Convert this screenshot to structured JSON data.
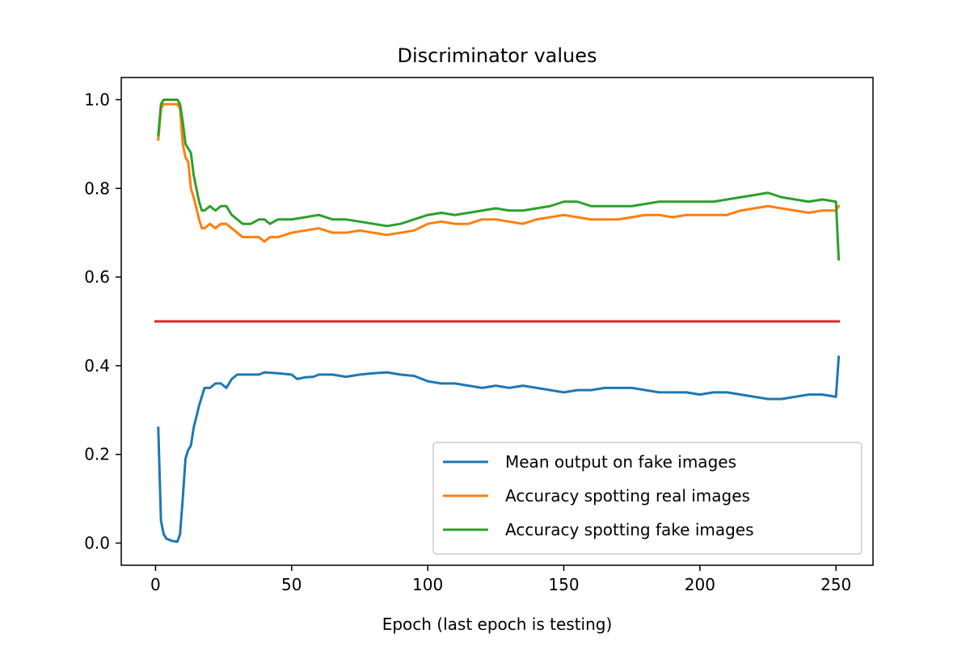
{
  "chart_data": {
    "type": "line",
    "title": "Discriminator values",
    "xlabel": "Epoch (last epoch is testing)",
    "ylabel": "",
    "xlim": [
      -12.6,
      263.6
    ],
    "ylim": [
      -0.05,
      1.05
    ],
    "xticks": [
      0,
      50,
      100,
      150,
      200,
      250
    ],
    "yticks": [
      0.0,
      0.2,
      0.4,
      0.6,
      0.8,
      1.0
    ],
    "ytick_labels": [
      "0.0",
      "0.2",
      "0.4",
      "0.6",
      "0.8",
      "1.0"
    ],
    "legend_position": "lower right",
    "grid": false,
    "series": [
      {
        "name": "Mean output on fake images",
        "color": "#1f77b4",
        "points": [
          [
            1,
            0.26
          ],
          [
            2,
            0.05
          ],
          [
            3,
            0.02
          ],
          [
            4,
            0.01
          ],
          [
            6,
            0.005
          ],
          [
            8,
            0.003
          ],
          [
            9,
            0.02
          ],
          [
            10,
            0.1
          ],
          [
            11,
            0.19
          ],
          [
            12,
            0.21
          ],
          [
            13,
            0.22
          ],
          [
            14,
            0.26
          ],
          [
            16,
            0.31
          ],
          [
            18,
            0.35
          ],
          [
            20,
            0.35
          ],
          [
            22,
            0.36
          ],
          [
            24,
            0.36
          ],
          [
            26,
            0.35
          ],
          [
            28,
            0.37
          ],
          [
            30,
            0.38
          ],
          [
            33,
            0.38
          ],
          [
            35,
            0.38
          ],
          [
            38,
            0.38
          ],
          [
            40,
            0.385
          ],
          [
            45,
            0.383
          ],
          [
            50,
            0.38
          ],
          [
            52,
            0.37
          ],
          [
            55,
            0.374
          ],
          [
            58,
            0.375
          ],
          [
            60,
            0.38
          ],
          [
            65,
            0.38
          ],
          [
            70,
            0.375
          ],
          [
            75,
            0.38
          ],
          [
            80,
            0.383
          ],
          [
            85,
            0.385
          ],
          [
            90,
            0.38
          ],
          [
            95,
            0.377
          ],
          [
            100,
            0.365
          ],
          [
            105,
            0.36
          ],
          [
            110,
            0.36
          ],
          [
            115,
            0.355
          ],
          [
            120,
            0.35
          ],
          [
            125,
            0.355
          ],
          [
            130,
            0.35
          ],
          [
            135,
            0.355
          ],
          [
            140,
            0.35
          ],
          [
            145,
            0.345
          ],
          [
            150,
            0.34
          ],
          [
            155,
            0.345
          ],
          [
            160,
            0.345
          ],
          [
            165,
            0.35
          ],
          [
            170,
            0.35
          ],
          [
            175,
            0.35
          ],
          [
            180,
            0.345
          ],
          [
            185,
            0.34
          ],
          [
            190,
            0.34
          ],
          [
            195,
            0.34
          ],
          [
            200,
            0.335
          ],
          [
            205,
            0.34
          ],
          [
            210,
            0.34
          ],
          [
            215,
            0.335
          ],
          [
            220,
            0.33
          ],
          [
            225,
            0.325
          ],
          [
            230,
            0.325
          ],
          [
            235,
            0.33
          ],
          [
            240,
            0.335
          ],
          [
            245,
            0.335
          ],
          [
            250,
            0.33
          ],
          [
            251,
            0.42
          ]
        ]
      },
      {
        "name": "Accuracy spotting real images",
        "color": "#ff7f0e",
        "points": [
          [
            1,
            0.91
          ],
          [
            2,
            0.98
          ],
          [
            3,
            0.99
          ],
          [
            5,
            0.99
          ],
          [
            8,
            0.99
          ],
          [
            9,
            0.98
          ],
          [
            10,
            0.9
          ],
          [
            11,
            0.87
          ],
          [
            12,
            0.86
          ],
          [
            13,
            0.8
          ],
          [
            14,
            0.78
          ],
          [
            16,
            0.73
          ],
          [
            17,
            0.71
          ],
          [
            18,
            0.71
          ],
          [
            20,
            0.72
          ],
          [
            22,
            0.71
          ],
          [
            24,
            0.72
          ],
          [
            26,
            0.72
          ],
          [
            28,
            0.71
          ],
          [
            30,
            0.7
          ],
          [
            32,
            0.69
          ],
          [
            35,
            0.69
          ],
          [
            38,
            0.69
          ],
          [
            40,
            0.68
          ],
          [
            42,
            0.69
          ],
          [
            45,
            0.69
          ],
          [
            50,
            0.7
          ],
          [
            55,
            0.705
          ],
          [
            60,
            0.71
          ],
          [
            65,
            0.7
          ],
          [
            70,
            0.7
          ],
          [
            75,
            0.705
          ],
          [
            80,
            0.7
          ],
          [
            85,
            0.695
          ],
          [
            90,
            0.7
          ],
          [
            95,
            0.705
          ],
          [
            100,
            0.72
          ],
          [
            105,
            0.725
          ],
          [
            110,
            0.72
          ],
          [
            115,
            0.72
          ],
          [
            120,
            0.73
          ],
          [
            125,
            0.73
          ],
          [
            130,
            0.725
          ],
          [
            135,
            0.72
          ],
          [
            140,
            0.73
          ],
          [
            145,
            0.735
          ],
          [
            150,
            0.74
          ],
          [
            155,
            0.735
          ],
          [
            160,
            0.73
          ],
          [
            165,
            0.73
          ],
          [
            170,
            0.73
          ],
          [
            175,
            0.735
          ],
          [
            180,
            0.74
          ],
          [
            185,
            0.74
          ],
          [
            190,
            0.735
          ],
          [
            195,
            0.74
          ],
          [
            200,
            0.74
          ],
          [
            205,
            0.74
          ],
          [
            210,
            0.74
          ],
          [
            215,
            0.75
          ],
          [
            220,
            0.755
          ],
          [
            225,
            0.76
          ],
          [
            230,
            0.755
          ],
          [
            235,
            0.75
          ],
          [
            240,
            0.745
          ],
          [
            245,
            0.75
          ],
          [
            250,
            0.75
          ],
          [
            251,
            0.76
          ]
        ]
      },
      {
        "name": "Accuracy spotting fake images",
        "color": "#2ca02c",
        "points": [
          [
            1,
            0.92
          ],
          [
            2,
            0.99
          ],
          [
            3,
            1.0
          ],
          [
            5,
            1.0
          ],
          [
            8,
            1.0
          ],
          [
            9,
            0.99
          ],
          [
            10,
            0.95
          ],
          [
            11,
            0.9
          ],
          [
            12,
            0.89
          ],
          [
            13,
            0.88
          ],
          [
            14,
            0.83
          ],
          [
            16,
            0.77
          ],
          [
            17,
            0.75
          ],
          [
            18,
            0.75
          ],
          [
            20,
            0.76
          ],
          [
            22,
            0.75
          ],
          [
            24,
            0.76
          ],
          [
            26,
            0.76
          ],
          [
            28,
            0.74
          ],
          [
            30,
            0.73
          ],
          [
            32,
            0.72
          ],
          [
            35,
            0.72
          ],
          [
            38,
            0.73
          ],
          [
            40,
            0.73
          ],
          [
            42,
            0.72
          ],
          [
            45,
            0.73
          ],
          [
            50,
            0.73
          ],
          [
            55,
            0.735
          ],
          [
            60,
            0.74
          ],
          [
            65,
            0.73
          ],
          [
            70,
            0.73
          ],
          [
            75,
            0.725
          ],
          [
            80,
            0.72
          ],
          [
            85,
            0.715
          ],
          [
            90,
            0.72
          ],
          [
            95,
            0.73
          ],
          [
            100,
            0.74
          ],
          [
            105,
            0.745
          ],
          [
            110,
            0.74
          ],
          [
            115,
            0.745
          ],
          [
            120,
            0.75
          ],
          [
            125,
            0.755
          ],
          [
            130,
            0.75
          ],
          [
            135,
            0.75
          ],
          [
            140,
            0.755
          ],
          [
            145,
            0.76
          ],
          [
            150,
            0.77
          ],
          [
            155,
            0.77
          ],
          [
            160,
            0.76
          ],
          [
            165,
            0.76
          ],
          [
            170,
            0.76
          ],
          [
            175,
            0.76
          ],
          [
            180,
            0.765
          ],
          [
            185,
            0.77
          ],
          [
            190,
            0.77
          ],
          [
            195,
            0.77
          ],
          [
            200,
            0.77
          ],
          [
            205,
            0.77
          ],
          [
            210,
            0.775
          ],
          [
            215,
            0.78
          ],
          [
            220,
            0.785
          ],
          [
            225,
            0.79
          ],
          [
            230,
            0.78
          ],
          [
            235,
            0.775
          ],
          [
            240,
            0.77
          ],
          [
            245,
            0.775
          ],
          [
            250,
            0.77
          ],
          [
            251,
            0.64
          ]
        ]
      },
      {
        "name": "",
        "color": "#d62728",
        "points": [
          [
            0,
            0.5
          ],
          [
            251,
            0.5
          ]
        ]
      }
    ]
  }
}
